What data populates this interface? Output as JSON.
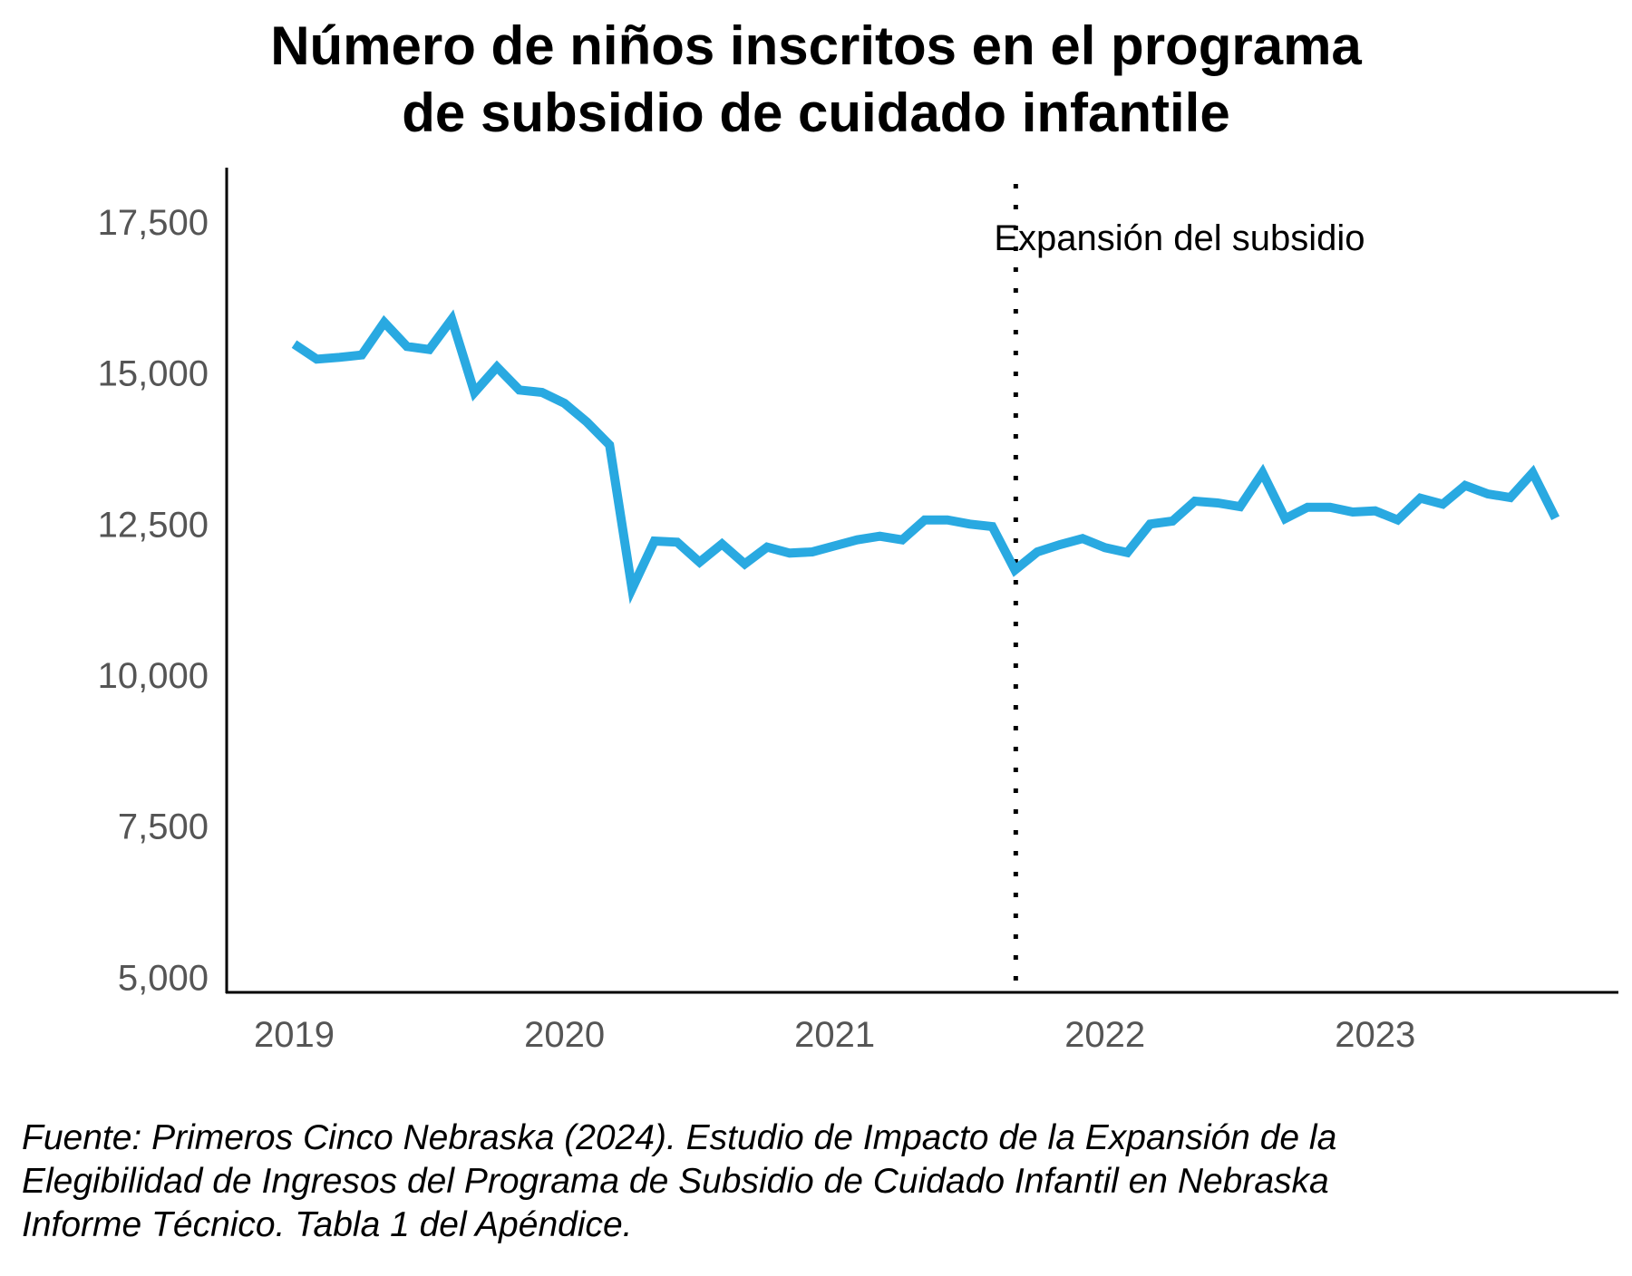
{
  "chart_data": {
    "type": "line",
    "title_lines": [
      "Número de niños inscritos en el programa",
      "de subsidio de cuidado infantile"
    ],
    "xlabel": "",
    "ylabel": "",
    "x_ticks": [
      "2019",
      "2020",
      "2021",
      "2022",
      "2023"
    ],
    "y_ticks": [
      "5,000",
      "7,500",
      "10,000",
      "12,500",
      "15,000",
      "17,500"
    ],
    "ylim": [
      4750,
      18400
    ],
    "xlim": [
      2018.75,
      2023.9
    ],
    "grid": false,
    "annotation": {
      "label": "Expansión del subsidio",
      "x": 2021.67,
      "style": "dotted vertical line"
    },
    "series": [
      {
        "color": "#29a9e1",
        "x": [
          2019.0,
          2019.083,
          2019.167,
          2019.25,
          2019.333,
          2019.417,
          2019.5,
          2019.583,
          2019.667,
          2019.75,
          2019.833,
          2019.917,
          2020.0,
          2020.083,
          2020.167,
          2020.25,
          2020.333,
          2020.417,
          2020.5,
          2020.583,
          2020.667,
          2020.75,
          2020.833,
          2020.917,
          2021.0,
          2021.083,
          2021.167,
          2021.25,
          2021.333,
          2021.417,
          2021.5,
          2021.583,
          2021.667,
          2021.75,
          2021.833,
          2021.917,
          2022.0,
          2022.083,
          2022.167,
          2022.25,
          2022.333,
          2022.417,
          2022.5,
          2022.583,
          2022.667,
          2022.75,
          2022.833,
          2022.917,
          2023.0,
          2023.083,
          2023.167,
          2023.25,
          2023.333,
          2023.417,
          2023.5,
          2023.583,
          2023.667
        ],
        "values": [
          15480,
          15230,
          15260,
          15300,
          15840,
          15440,
          15390,
          15890,
          14680,
          15100,
          14720,
          14680,
          14500,
          14190,
          13810,
          11430,
          12220,
          12200,
          11870,
          12170,
          11840,
          12120,
          12020,
          12040,
          12140,
          12240,
          12300,
          12240,
          12570,
          12570,
          12500,
          12460,
          11740,
          12040,
          12160,
          12260,
          12110,
          12030,
          12500,
          12550,
          12880,
          12850,
          12790,
          13350,
          12590,
          12780,
          12780,
          12700,
          12720,
          12570,
          12930,
          12830,
          13140,
          13000,
          12940,
          13350,
          12600
        ]
      }
    ]
  },
  "source_lines": [
    "Fuente: Primeros Cinco Nebraska (2024). Estudio de Impacto de la Expansión de la",
    "Elegibilidad de Ingresos del Programa de Subsidio de Cuidado Infantil en Nebraska",
    "Informe Técnico. Tabla 1 del Apéndice."
  ]
}
